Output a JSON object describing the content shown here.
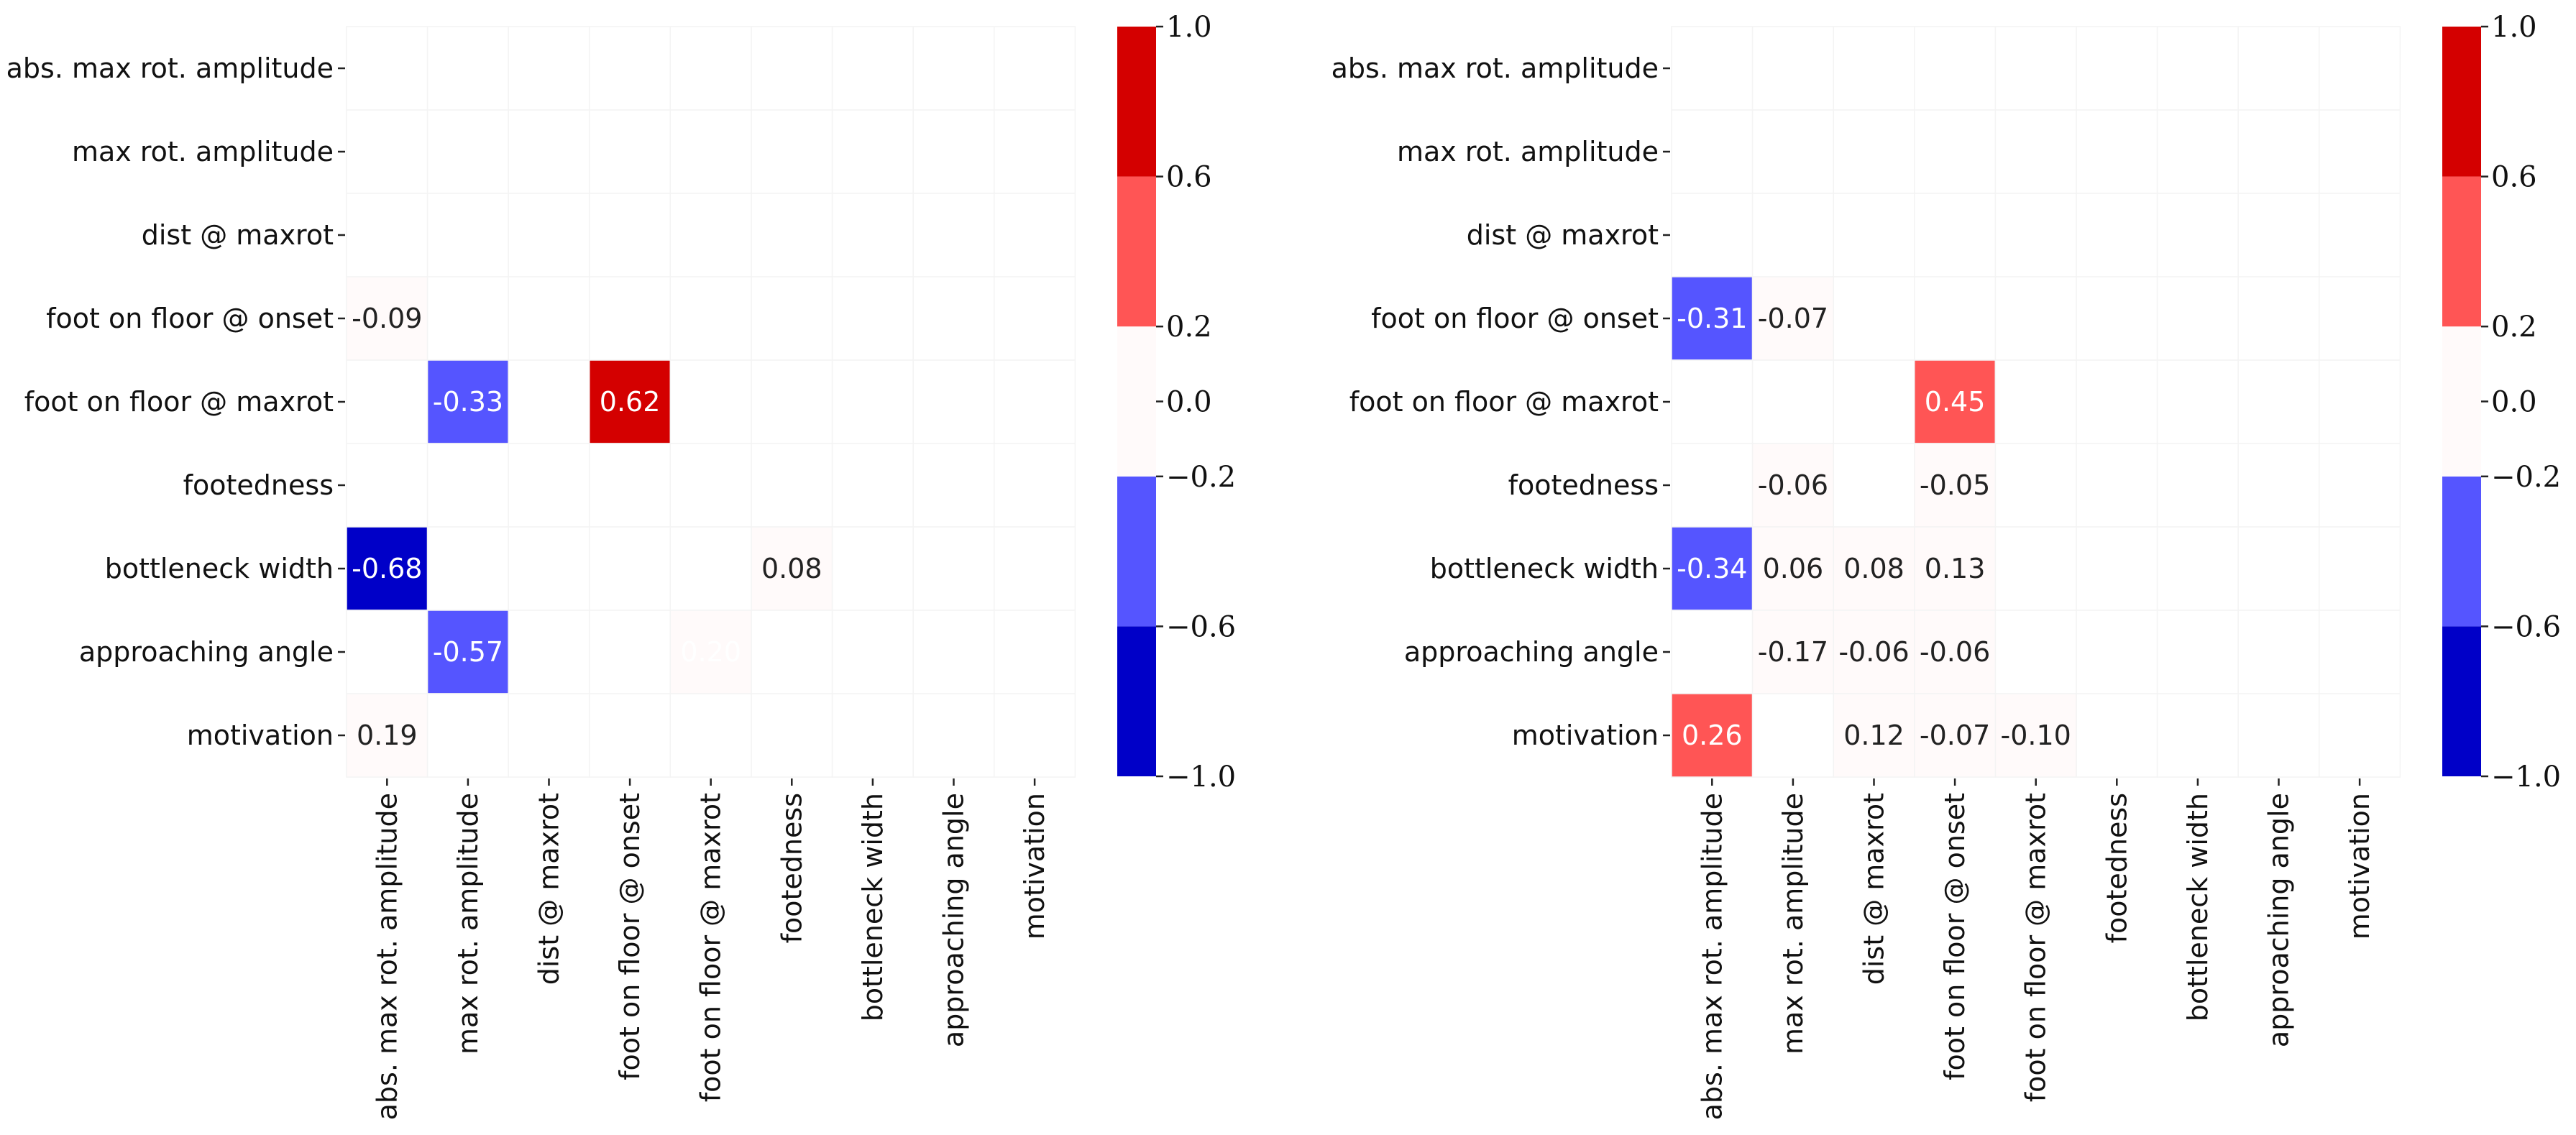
{
  "chart_data": [
    {
      "type": "heatmap",
      "title": "",
      "rows": [
        "abs. max rot. amplitude",
        "max rot. amplitude",
        "dist @ maxrot",
        "foot on floor @ onset",
        "foot on floor @ maxrot",
        "footedness",
        "bottleneck width",
        "approaching angle",
        "motivation"
      ],
      "cols": [
        "abs. max rot. amplitude",
        "max rot. amplitude",
        "dist @ maxrot",
        "foot on floor @ onset",
        "foot on floor @ maxrot",
        "footedness",
        "bottleneck width",
        "approaching angle",
        "motivation"
      ],
      "values": [
        [
          null,
          null,
          null,
          null,
          null,
          null,
          null,
          null,
          null
        ],
        [
          null,
          null,
          null,
          null,
          null,
          null,
          null,
          null,
          null
        ],
        [
          null,
          null,
          null,
          null,
          null,
          null,
          null,
          null,
          null
        ],
        [
          -0.09,
          null,
          null,
          null,
          null,
          null,
          null,
          null,
          null
        ],
        [
          null,
          -0.33,
          null,
          0.62,
          null,
          null,
          null,
          null,
          null
        ],
        [
          null,
          null,
          null,
          null,
          null,
          null,
          null,
          null,
          null
        ],
        [
          -0.68,
          null,
          null,
          null,
          null,
          0.08,
          null,
          null,
          null
        ],
        [
          null,
          -0.57,
          null,
          null,
          0.2,
          null,
          null,
          null,
          null
        ],
        [
          0.19,
          null,
          null,
          null,
          null,
          null,
          null,
          null,
          null
        ]
      ],
      "labels": [
        [
          null,
          null,
          null,
          null,
          null,
          null,
          null,
          null,
          null
        ],
        [
          null,
          null,
          null,
          null,
          null,
          null,
          null,
          null,
          null
        ],
        [
          null,
          null,
          null,
          null,
          null,
          null,
          null,
          null,
          null
        ],
        [
          "-0.09",
          null,
          null,
          null,
          null,
          null,
          null,
          null,
          null
        ],
        [
          null,
          "-0.33",
          null,
          "0.62",
          null,
          null,
          null,
          null,
          null
        ],
        [
          null,
          null,
          null,
          null,
          null,
          null,
          null,
          null,
          null
        ],
        [
          "-0.68",
          null,
          null,
          null,
          null,
          "0.08",
          null,
          null,
          null
        ],
        [
          null,
          "-0.57",
          null,
          null,
          "0.20",
          null,
          null,
          null,
          null
        ],
        [
          "0.19",
          null,
          null,
          null,
          null,
          null,
          null,
          null,
          null
        ]
      ],
      "colorbar": {
        "range": [
          -1.0,
          1.0
        ],
        "boundaries": [
          -1.0,
          -0.6,
          -0.2,
          0.2,
          0.6,
          1.0
        ],
        "colors": [
          "#0000c8",
          "#5555ff",
          "#fffafa",
          "#ff5555",
          "#d40000"
        ],
        "ticks": [
          -1.0,
          -0.6,
          -0.2,
          0.0,
          0.2,
          0.6,
          1.0
        ],
        "tick_labels": [
          "−1.0",
          "−0.6",
          "−0.2",
          "0.0",
          "0.2",
          "0.6",
          "1.0"
        ]
      }
    },
    {
      "type": "heatmap",
      "title": "",
      "rows": [
        "abs. max rot. amplitude",
        "max rot. amplitude",
        "dist @ maxrot",
        "foot on floor @ onset",
        "foot on floor @ maxrot",
        "footedness",
        "bottleneck width",
        "approaching angle",
        "motivation"
      ],
      "cols": [
        "abs. max rot. amplitude",
        "max rot. amplitude",
        "dist @ maxrot",
        "foot on floor @ onset",
        "foot on floor @ maxrot",
        "footedness",
        "bottleneck width",
        "approaching angle",
        "motivation"
      ],
      "values": [
        [
          null,
          null,
          null,
          null,
          null,
          null,
          null,
          null,
          null
        ],
        [
          null,
          null,
          null,
          null,
          null,
          null,
          null,
          null,
          null
        ],
        [
          null,
          null,
          null,
          null,
          null,
          null,
          null,
          null,
          null
        ],
        [
          -0.31,
          -0.07,
          null,
          null,
          null,
          null,
          null,
          null,
          null
        ],
        [
          null,
          null,
          null,
          0.45,
          null,
          null,
          null,
          null,
          null
        ],
        [
          null,
          -0.06,
          null,
          -0.05,
          null,
          null,
          null,
          null,
          null
        ],
        [
          -0.34,
          0.06,
          0.08,
          0.13,
          null,
          null,
          null,
          null,
          null
        ],
        [
          null,
          -0.17,
          -0.06,
          -0.06,
          null,
          null,
          null,
          null,
          null
        ],
        [
          0.26,
          null,
          0.12,
          -0.07,
          -0.1,
          null,
          null,
          null,
          null
        ]
      ],
      "labels": [
        [
          null,
          null,
          null,
          null,
          null,
          null,
          null,
          null,
          null
        ],
        [
          null,
          null,
          null,
          null,
          null,
          null,
          null,
          null,
          null
        ],
        [
          null,
          null,
          null,
          null,
          null,
          null,
          null,
          null,
          null
        ],
        [
          "-0.31",
          "-0.07",
          null,
          null,
          null,
          null,
          null,
          null,
          null
        ],
        [
          null,
          null,
          null,
          "0.45",
          null,
          null,
          null,
          null,
          null
        ],
        [
          null,
          "-0.06",
          null,
          "-0.05",
          null,
          null,
          null,
          null,
          null
        ],
        [
          "-0.34",
          "0.06",
          "0.08",
          "0.13",
          null,
          null,
          null,
          null,
          null
        ],
        [
          null,
          "-0.17",
          "-0.06",
          "-0.06",
          null,
          null,
          null,
          null,
          null
        ],
        [
          "0.26",
          null,
          "0.12",
          "-0.07",
          "-0.10",
          null,
          null,
          null,
          null
        ]
      ],
      "colorbar": {
        "range": [
          -1.0,
          1.0
        ],
        "boundaries": [
          -1.0,
          -0.6,
          -0.2,
          0.2,
          0.6,
          1.0
        ],
        "colors": [
          "#0000c8",
          "#5555ff",
          "#fffafa",
          "#ff5555",
          "#d40000"
        ],
        "ticks": [
          -1.0,
          -0.6,
          -0.2,
          0.0,
          0.2,
          0.6,
          1.0
        ],
        "tick_labels": [
          "−1.0",
          "−0.6",
          "−0.2",
          "0.0",
          "0.2",
          "0.6",
          "1.0"
        ]
      }
    }
  ]
}
